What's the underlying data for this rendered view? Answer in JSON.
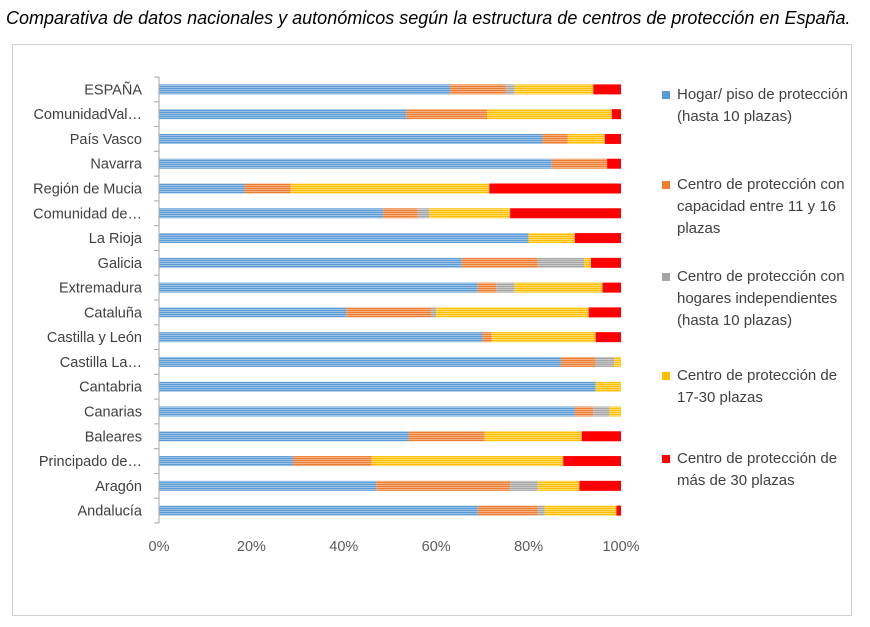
{
  "title": "Comparativa de datos nacionales y autonómicos según la estructura de centros de protección en España.",
  "chart_data": {
    "type": "bar",
    "orientation": "horizontal",
    "stacked": "percent",
    "categories": [
      "ESPAÑA",
      "ComunidadVal…",
      "País Vasco",
      "Navarra",
      "Región de Mucia",
      "Comunidad de…",
      "La Rioja",
      "Galicia",
      "Extremadura",
      "Cataluña",
      "Castilla y León",
      "Castilla La…",
      "Cantabria",
      "Canarias",
      "Baleares",
      "Principado de…",
      "Aragón",
      "Andalucía"
    ],
    "series": [
      {
        "name": "Hogar/ piso de protección (hasta 10 plazas)",
        "color": "#5b9bd5",
        "values": [
          63,
          53.5,
          83,
          85,
          18.5,
          48.5,
          80,
          65.5,
          69,
          40.5,
          70,
          87,
          94.5,
          90,
          54,
          29,
          47,
          69
        ]
      },
      {
        "name": "Centro de protección con capacidad entre 11 y 16 plazas",
        "color": "#ed7d31",
        "values": [
          12,
          17.5,
          5.5,
          12,
          10,
          7.5,
          0,
          16.5,
          4,
          18.5,
          2,
          7.5,
          0,
          4,
          16.5,
          17,
          29,
          13
        ]
      },
      {
        "name": "Centro de protección con hogares independientes (hasta 10 plazas)",
        "color": "#a5a5a5",
        "values": [
          2,
          0,
          0,
          0,
          0,
          2.5,
          0,
          10,
          4,
          1,
          0,
          4,
          0,
          3.5,
          0,
          0,
          6,
          1.5
        ]
      },
      {
        "name": "Centro de protección de 17-30 plazas",
        "color": "#ffc000",
        "values": [
          17,
          27,
          8,
          0,
          43,
          17.5,
          10,
          1.5,
          19,
          33,
          22.5,
          1.5,
          5.5,
          2.5,
          21,
          41.5,
          9,
          15.5
        ]
      },
      {
        "name": "Centro de protección de más de 30 plazas",
        "color": "#ff0000",
        "values": [
          6,
          2,
          3.5,
          3,
          28.5,
          24,
          10,
          6.5,
          4,
          7,
          5.5,
          0,
          0,
          0,
          8.5,
          12.5,
          9,
          1
        ]
      }
    ],
    "xlim": [
      0,
      100
    ],
    "xticks": [
      "0%",
      "20%",
      "40%",
      "60%",
      "80%",
      "100%"
    ],
    "grid": false,
    "legend_position": "right"
  }
}
